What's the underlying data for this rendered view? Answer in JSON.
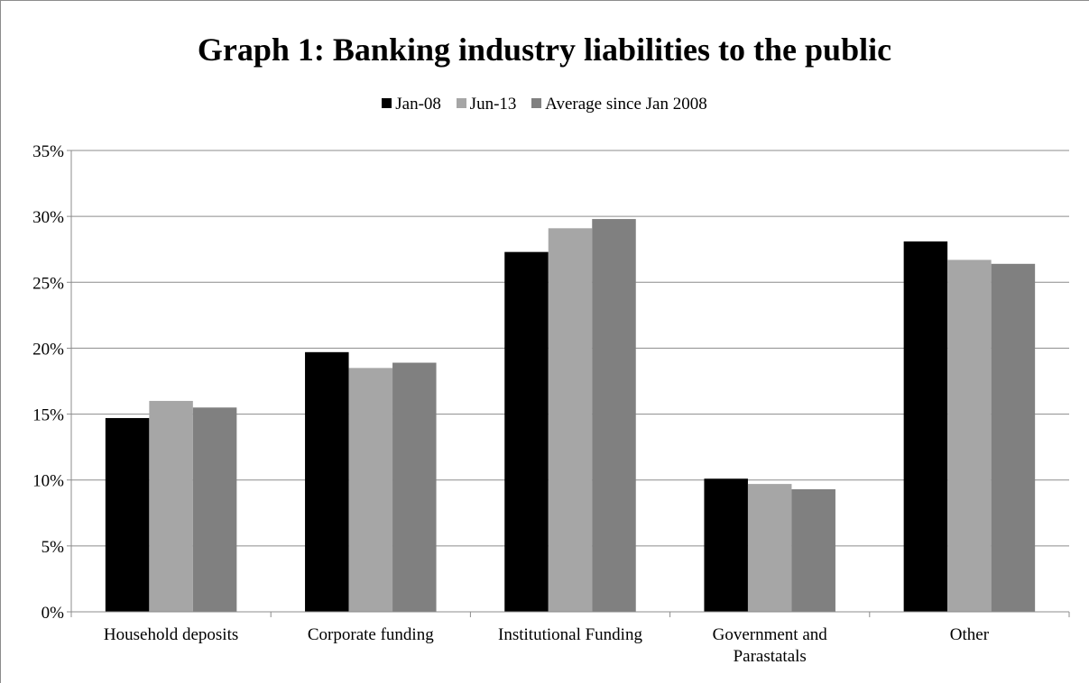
{
  "chart_data": {
    "type": "bar",
    "title": "Graph 1: Banking industry liabilities to the public",
    "xlabel": "",
    "ylabel": "",
    "categories": [
      [
        "Household deposits"
      ],
      [
        "Corporate funding"
      ],
      [
        "Institutional Funding"
      ],
      [
        "Government and",
        "Parastatals"
      ],
      [
        "Other"
      ]
    ],
    "series": [
      {
        "name": "Jan-08",
        "color": "#000000",
        "values": [
          14.7,
          19.7,
          27.3,
          10.1,
          28.1
        ]
      },
      {
        "name": "Jun-13",
        "color": "#a6a6a6",
        "values": [
          16.0,
          18.5,
          29.1,
          9.7,
          26.7
        ]
      },
      {
        "name": "Average since Jan 2008",
        "color": "#808080",
        "values": [
          15.5,
          18.9,
          29.8,
          9.3,
          26.4
        ]
      }
    ],
    "ylim": [
      0,
      35
    ],
    "yticks": [
      0,
      5,
      10,
      15,
      20,
      25,
      30,
      35
    ],
    "ytick_labels": [
      "0%",
      "5%",
      "10%",
      "15%",
      "20%",
      "25%",
      "30%",
      "35%"
    ],
    "grid": true,
    "legend_position": "top"
  }
}
